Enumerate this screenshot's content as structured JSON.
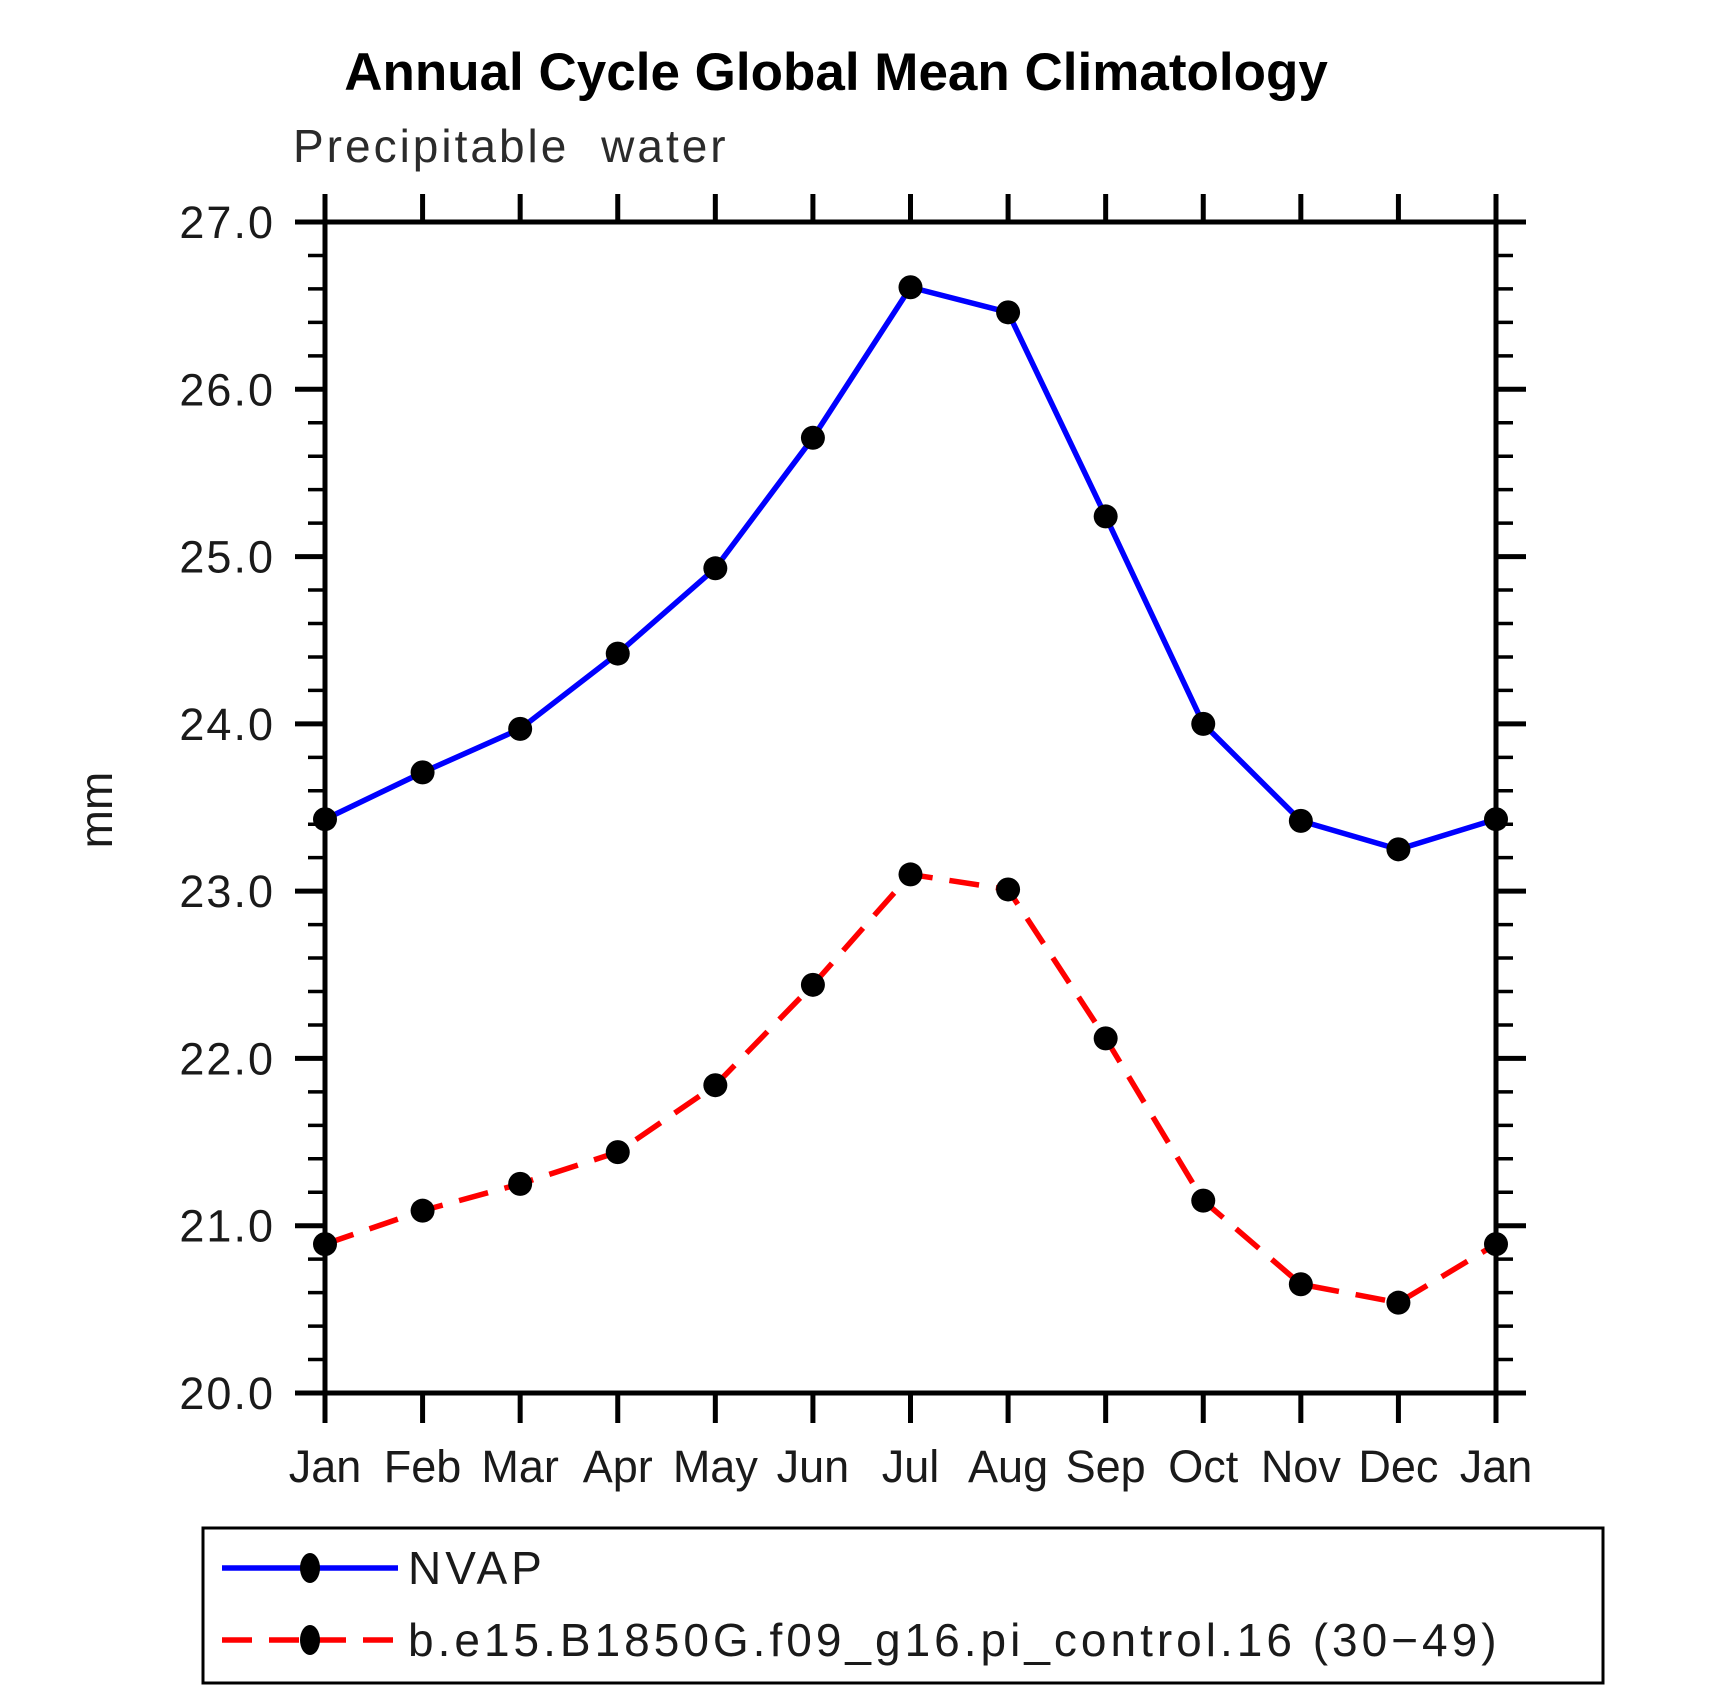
{
  "page": {
    "background": "#ffffff",
    "accent_blue": "#0000ff",
    "accent_red": "#ff0000"
  },
  "title": "Annual Cycle Global Mean Climatology",
  "subtitle": "Precipitable water",
  "y_axis": {
    "label": "mm",
    "range": [
      20.0,
      27.0
    ],
    "tick_labels": [
      "20.0",
      "21.0",
      "22.0",
      "23.0",
      "24.0",
      "25.0",
      "26.0",
      "27.0"
    ]
  },
  "x_axis": {
    "tick_labels": [
      "Jan",
      "Feb",
      "Mar",
      "Apr",
      "May",
      "Jun",
      "Jul",
      "Aug",
      "Sep",
      "Oct",
      "Nov",
      "Dec",
      "Jan"
    ]
  },
  "legend": {
    "items": [
      {
        "label": "NVAP",
        "color": "#0000ff",
        "line_style": "solid",
        "marker": "filled-circle"
      },
      {
        "label": "b.e15.B1850G.f09_g16.pi_control.16 (30−49)",
        "color": "#ff0000",
        "line_style": "dashed",
        "marker": "filled-circle"
      }
    ]
  },
  "chart_data": {
    "type": "line",
    "title": "Annual Cycle Global Mean Climatology",
    "subtitle": "Precipitable water",
    "xlabel": "",
    "ylabel": "mm",
    "categories": [
      "Jan",
      "Feb",
      "Mar",
      "Apr",
      "May",
      "Jun",
      "Jul",
      "Aug",
      "Sep",
      "Oct",
      "Nov",
      "Dec",
      "Jan"
    ],
    "series": [
      {
        "name": "NVAP",
        "color": "#0000ff",
        "line_style": "solid",
        "marker": "black-dot",
        "values": [
          23.43,
          23.71,
          23.97,
          24.42,
          24.93,
          25.71,
          26.61,
          26.46,
          25.24,
          24.0,
          23.42,
          23.25,
          23.43
        ]
      },
      {
        "name": "b.e15.B1850G.f09_g16.pi_control.16 (30−49)",
        "color": "#ff0000",
        "line_style": "dashed",
        "marker": "black-dot",
        "values": [
          20.89,
          21.09,
          21.25,
          21.44,
          21.84,
          22.44,
          23.1,
          23.01,
          22.12,
          21.15,
          20.65,
          20.54,
          20.89
        ]
      }
    ],
    "ylim": [
      20.0,
      27.0
    ],
    "ytick_major": [
      20,
      21,
      22,
      23,
      24,
      25,
      26,
      27
    ],
    "ytick_labels": [
      "20.0",
      "21.0",
      "22.0",
      "23.0",
      "24.0",
      "25.0",
      "26.0",
      "27.0"
    ],
    "ytick_minor_step": 0.2,
    "grid": false,
    "legend_position": "bottom"
  }
}
